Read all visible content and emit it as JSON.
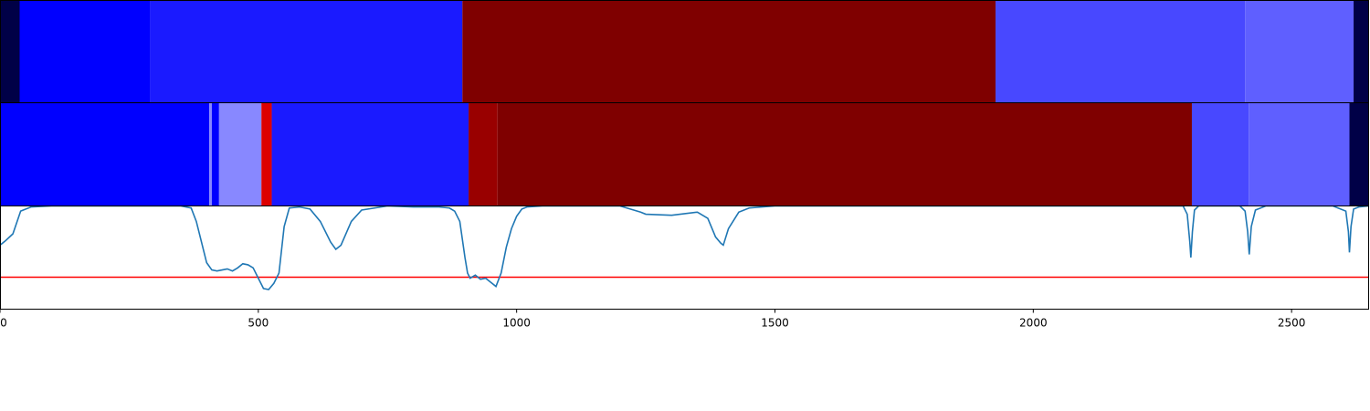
{
  "chart_data": [
    {
      "type": "heatmap",
      "xlim": [
        0,
        2650
      ],
      "segments": [
        {
          "start": 0,
          "end": 38,
          "color": "#000047"
        },
        {
          "start": 38,
          "end": 290,
          "color": "#0000ff"
        },
        {
          "start": 290,
          "end": 895,
          "color": "#1a1aff"
        },
        {
          "start": 895,
          "end": 1927,
          "color": "#7f0000"
        },
        {
          "start": 1927,
          "end": 2410,
          "color": "#4848ff"
        },
        {
          "start": 2410,
          "end": 2620,
          "color": "#5f5fff"
        },
        {
          "start": 2620,
          "end": 2650,
          "color": "#000047"
        }
      ]
    },
    {
      "type": "heatmap",
      "xlim": [
        0,
        2650
      ],
      "segments": [
        {
          "start": 0,
          "end": 405,
          "color": "#0000ff"
        },
        {
          "start": 405,
          "end": 410,
          "color": "#8888ff"
        },
        {
          "start": 410,
          "end": 424,
          "color": "#0000ff"
        },
        {
          "start": 424,
          "end": 506,
          "color": "#8888ff"
        },
        {
          "start": 506,
          "end": 526,
          "color": "#dd0000"
        },
        {
          "start": 526,
          "end": 907,
          "color": "#1a1aff"
        },
        {
          "start": 907,
          "end": 963,
          "color": "#990000"
        },
        {
          "start": 963,
          "end": 2307,
          "color": "#7f0000"
        },
        {
          "start": 2307,
          "end": 2417,
          "color": "#4848ff"
        },
        {
          "start": 2417,
          "end": 2612,
          "color": "#5f5fff"
        },
        {
          "start": 2612,
          "end": 2650,
          "color": "#000047"
        }
      ]
    },
    {
      "type": "line",
      "xlim": [
        0,
        2650
      ],
      "ylim": [
        0,
        1
      ],
      "xticks": [
        0,
        500,
        1000,
        1500,
        2000,
        2500
      ],
      "line_color": "#1f77b4",
      "threshold": 0.31,
      "threshold_color": "#ff0000",
      "x": [
        0,
        10,
        25,
        40,
        60,
        100,
        200,
        350,
        370,
        380,
        390,
        400,
        410,
        420,
        430,
        440,
        450,
        460,
        470,
        480,
        490,
        500,
        505,
        510,
        520,
        530,
        540,
        550,
        560,
        580,
        600,
        620,
        640,
        650,
        660,
        680,
        700,
        750,
        800,
        850,
        870,
        880,
        890,
        900,
        905,
        910,
        920,
        930,
        940,
        950,
        960,
        970,
        980,
        990,
        1000,
        1010,
        1020,
        1050,
        1100,
        1150,
        1200,
        1220,
        1240,
        1250,
        1300,
        1350,
        1370,
        1385,
        1395,
        1400,
        1410,
        1430,
        1450,
        1500,
        1600,
        1800,
        2000,
        2200,
        2290,
        2298,
        2303,
        2305,
        2308,
        2312,
        2320,
        2350,
        2400,
        2410,
        2415,
        2418,
        2422,
        2430,
        2450,
        2500,
        2580,
        2605,
        2610,
        2612,
        2615,
        2620,
        2630,
        2650
      ],
      "y": [
        0.62,
        0.66,
        0.73,
        0.95,
        0.99,
        1.0,
        1.0,
        1.0,
        0.98,
        0.85,
        0.65,
        0.45,
        0.38,
        0.37,
        0.38,
        0.39,
        0.37,
        0.4,
        0.44,
        0.43,
        0.4,
        0.3,
        0.25,
        0.2,
        0.19,
        0.25,
        0.35,
        0.8,
        0.98,
        0.99,
        0.97,
        0.85,
        0.65,
        0.58,
        0.62,
        0.85,
        0.96,
        1.0,
        0.99,
        0.99,
        0.98,
        0.95,
        0.85,
        0.5,
        0.35,
        0.3,
        0.33,
        0.29,
        0.3,
        0.26,
        0.22,
        0.35,
        0.6,
        0.78,
        0.9,
        0.97,
        0.99,
        1.0,
        1.0,
        1.0,
        1.0,
        0.97,
        0.94,
        0.92,
        0.91,
        0.94,
        0.88,
        0.7,
        0.64,
        0.62,
        0.78,
        0.94,
        0.98,
        1.0,
        1.0,
        1.0,
        1.0,
        1.0,
        1.0,
        0.92,
        0.65,
        0.5,
        0.75,
        0.96,
        1.0,
        1.0,
        1.0,
        0.95,
        0.75,
        0.53,
        0.8,
        0.96,
        1.0,
        1.0,
        1.0,
        0.95,
        0.75,
        0.55,
        0.8,
        0.97,
        0.99,
        1.0
      ]
    }
  ]
}
